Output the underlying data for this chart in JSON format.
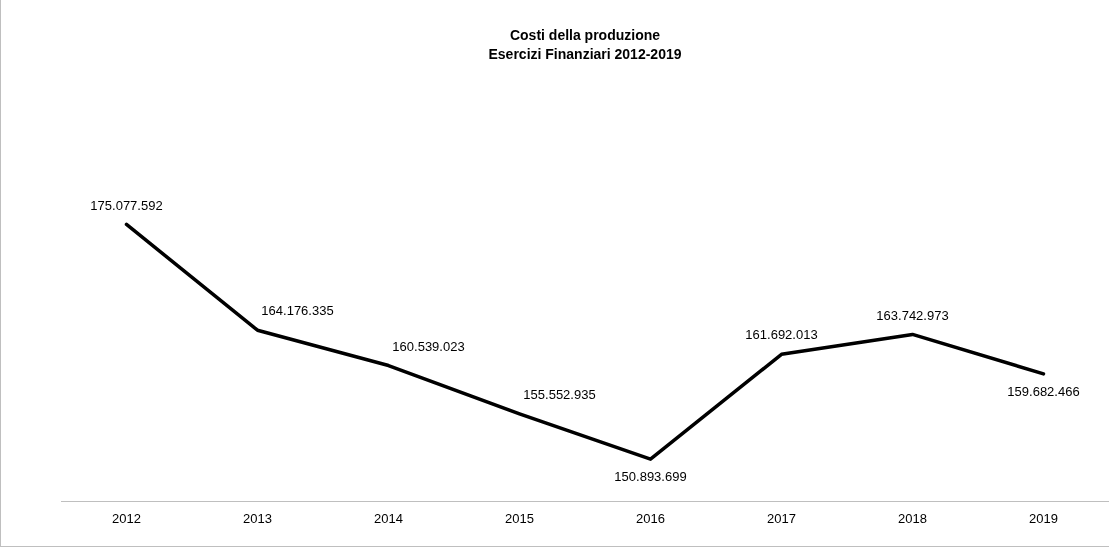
{
  "chart_data": {
    "type": "line",
    "title": "Costi della produzione",
    "subtitle": "Esercizi Finanziari 2012-2019",
    "categories": [
      "2012",
      "2013",
      "2014",
      "2015",
      "2016",
      "2017",
      "2018",
      "2019"
    ],
    "series": [
      {
        "color": "#000000",
        "values": [
          175077592,
          164176335,
          160539023,
          155552935,
          150893699,
          161692013,
          163742973,
          159682466
        ],
        "value_labels": [
          "175.077.592",
          "164.176.335",
          "160.539.023",
          "155.552.935",
          "150.893.699",
          "161.692.013",
          "163.742.973",
          "159.682.466"
        ]
      }
    ],
    "marker": "none",
    "line_style": "solid",
    "grid": false,
    "legend": false
  }
}
